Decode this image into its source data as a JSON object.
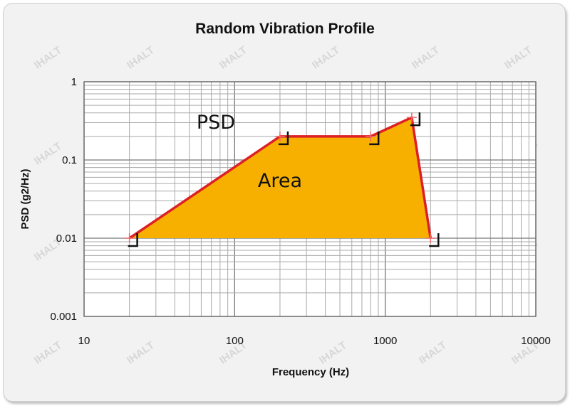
{
  "chart_data": {
    "type": "area",
    "title": "Random Vibration Profile",
    "xlabel": "Frequency (Hz)",
    "ylabel": "PSD (g2/Hz)",
    "x_scale": "log",
    "y_scale": "log",
    "xlim": [
      10,
      10000
    ],
    "ylim": [
      0.001,
      1
    ],
    "x_ticks": [
      "10",
      "100",
      "1000",
      "10000"
    ],
    "y_ticks": [
      "0.001",
      "0.01",
      "0.1",
      "1"
    ],
    "grid": true,
    "series": [
      {
        "x": [
          20,
          200,
          800,
          1500,
          2000
        ],
        "y": [
          0.01,
          0.2,
          0.2,
          0.35,
          0.01
        ],
        "line_color": "#dd1f26",
        "fill_color": "#f7b000"
      }
    ],
    "annotations": [
      {
        "text": "PSD",
        "x": 75,
        "y": 0.25
      },
      {
        "text": "Area",
        "x": 200,
        "y": 0.045
      }
    ],
    "watermark": "IHALT"
  }
}
